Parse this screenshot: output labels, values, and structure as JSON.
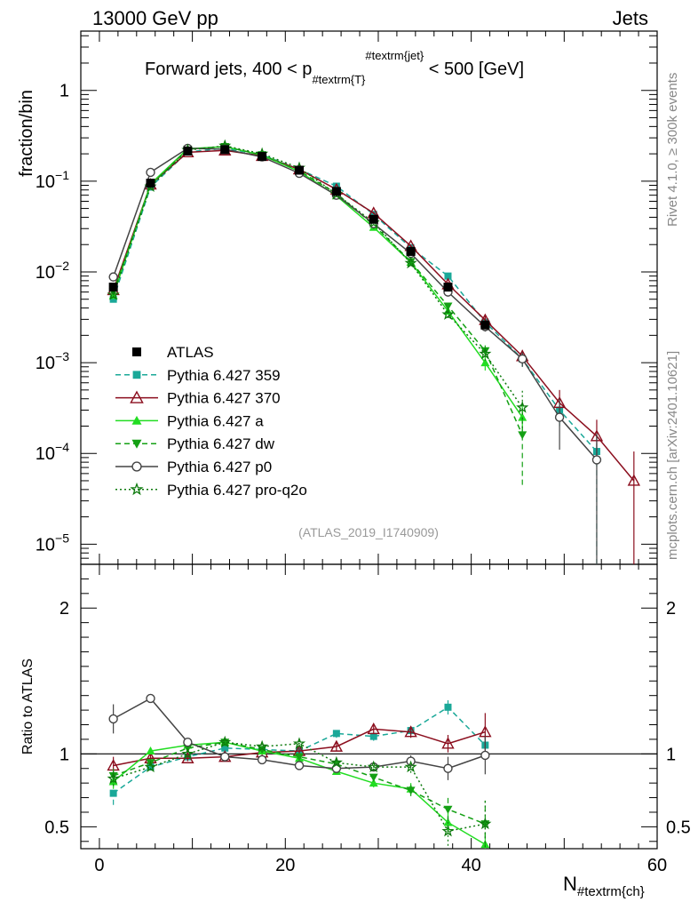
{
  "header": {
    "left": "13000 GeV pp",
    "right": "Jets"
  },
  "side_labels": {
    "rivet": "Rivet 4.1.0, ≥ 300k events",
    "mcplots": "mcplots.cern.ch [arXiv:2401.10621]"
  },
  "chart_data": {
    "type": "line",
    "title": "Forward jets, 400 < p_{#textrm{T}}^{#textrm{jet}} < 500 [GeV]",
    "title_parts": {
      "prefix": "Forward jets, 400 < p",
      "sub": "#textrm{T}",
      "sup": "#textrm{jet}",
      "suffix": " < 500 [GeV]"
    },
    "watermark": "(ATLAS_2019_I1740909)",
    "xlabel": "N",
    "xlabel_sub": "#textrm{ch}",
    "ylabel": "fraction/bin",
    "ratio_ylabel": "Ratio to ATLAS",
    "xlim": [
      -2,
      60
    ],
    "ylim_log": [
      6e-06,
      4.5
    ],
    "ratio_ylim": [
      0.35,
      2.3
    ],
    "x_ticks": [
      0,
      20,
      40,
      60
    ],
    "x_tick_labels": [
      "0",
      "20",
      "40",
      "60"
    ],
    "y_ticks": [
      1e-05,
      0.0001,
      0.001,
      0.01,
      0.1,
      1
    ],
    "y_tick_base": [
      "10",
      "10",
      "10",
      "10",
      "10",
      "1"
    ],
    "y_tick_exp": [
      "−5",
      "−4",
      "−3",
      "−2",
      "−1",
      ""
    ],
    "ratio_ticks": [
      0.5,
      1,
      2
    ],
    "ratio_tick_labels": [
      "0.5",
      "1",
      "2"
    ],
    "legend_position": "middle-left",
    "data": {
      "name": "ATLAS",
      "x": [
        1.5,
        5.5,
        9.5,
        13.5,
        17.5,
        21.5,
        25.5,
        29.5,
        33.5,
        37.5,
        41.5
      ],
      "y": [
        0.0068,
        0.095,
        0.215,
        0.222,
        0.187,
        0.132,
        0.077,
        0.038,
        0.0168,
        0.0068,
        0.0026
      ]
    },
    "series": [
      {
        "name": "Pythia 6.427 359",
        "color": "#1aa898",
        "dash": "6,4",
        "marker": "square",
        "x": [
          1.5,
          5.5,
          9.5,
          13.5,
          17.5,
          21.5,
          25.5,
          29.5,
          33.5,
          37.5,
          41.5,
          45.5,
          49.5,
          53.5
        ],
        "y": [
          0.005,
          0.086,
          0.21,
          0.23,
          0.195,
          0.135,
          0.088,
          0.043,
          0.0185,
          0.009,
          0.0028,
          0.0011,
          0.0003,
          0.000105
        ],
        "yerr_lo": [
          0.0004,
          0.003,
          0.005,
          0.005,
          0.004,
          0.003,
          0.002,
          0.0012,
          0.0007,
          0.0005,
          0.0003,
          0.0002,
          0.0001,
          0.000102
        ],
        "yerr_hi": [
          0.0004,
          0.003,
          0.005,
          0.005,
          0.004,
          0.003,
          0.002,
          0.0012,
          0.0007,
          0.0005,
          0.0003,
          0.0002,
          0.0001,
          6e-05
        ],
        "ratio": [
          0.73,
          0.91,
          0.98,
          1.04,
          1.03,
          1.02,
          1.14,
          1.12,
          1.16,
          1.32,
          1.06
        ],
        "ratio_err": [
          0.08,
          0.02,
          0.02,
          0.02,
          0.02,
          0.02,
          0.03,
          0.03,
          0.03,
          0.05,
          0.08
        ]
      },
      {
        "name": "Pythia 6.427 370",
        "color": "#8b0e1e",
        "dash": "",
        "marker": "triangle-open",
        "x": [
          1.5,
          5.5,
          9.5,
          13.5,
          17.5,
          21.5,
          25.5,
          29.5,
          33.5,
          37.5,
          41.5,
          45.5,
          49.5,
          53.5,
          57.5
        ],
        "y": [
          0.0063,
          0.092,
          0.208,
          0.218,
          0.19,
          0.135,
          0.081,
          0.0445,
          0.0193,
          0.0073,
          0.00295,
          0.00118,
          0.00036,
          0.000155,
          5e-05
        ],
        "yerr_lo": [
          0.0004,
          0.003,
          0.005,
          0.005,
          0.004,
          0.003,
          0.002,
          0.0012,
          0.0007,
          0.0005,
          0.0003,
          0.0002,
          0.00012,
          6e-05,
          4.6e-05
        ],
        "yerr_hi": [
          0.0004,
          0.003,
          0.005,
          0.005,
          0.004,
          0.003,
          0.002,
          0.0012,
          0.0007,
          0.0005,
          0.0003,
          0.0002,
          0.00014,
          8e-05,
          5.5e-05
        ],
        "ratio": [
          0.92,
          0.97,
          0.97,
          0.98,
          1.01,
          1.02,
          1.05,
          1.17,
          1.15,
          1.07,
          1.15
        ],
        "ratio_err": [
          0.06,
          0.03,
          0.02,
          0.02,
          0.02,
          0.02,
          0.03,
          0.03,
          0.04,
          0.06,
          0.13
        ]
      },
      {
        "name": "Pythia 6.427 a",
        "color": "#22dd22",
        "dash": "",
        "marker": "triangle",
        "x": [
          1.5,
          5.5,
          9.5,
          13.5,
          17.5,
          21.5,
          25.5,
          29.5,
          33.5,
          37.5,
          41.5,
          45.5
        ],
        "y": [
          0.0055,
          0.093,
          0.228,
          0.24,
          0.193,
          0.128,
          0.069,
          0.031,
          0.0128,
          0.0037,
          0.001,
          0.00025
        ],
        "yerr_lo": [
          0.0004,
          0.003,
          0.005,
          0.005,
          0.004,
          0.003,
          0.002,
          0.001,
          0.0006,
          0.0003,
          0.00018,
          9e-05
        ],
        "yerr_hi": [
          0.0004,
          0.003,
          0.005,
          0.005,
          0.004,
          0.003,
          0.002,
          0.001,
          0.0006,
          0.0003,
          0.00018,
          0.00012
        ],
        "ratio": [
          0.81,
          1.02,
          1.06,
          1.08,
          1.02,
          0.97,
          0.88,
          0.8,
          0.76,
          0.53,
          0.38
        ],
        "ratio_err": [
          0.05,
          0.02,
          0.02,
          0.02,
          0.02,
          0.02,
          0.02,
          0.03,
          0.04,
          0.08,
          0.08
        ]
      },
      {
        "name": "Pythia 6.427 dw",
        "color": "#14a014",
        "dash": "6,4",
        "marker": "triangle-down",
        "x": [
          1.5,
          5.5,
          9.5,
          13.5,
          17.5,
          21.5,
          25.5,
          29.5,
          33.5,
          37.5,
          41.5,
          45.5
        ],
        "y": [
          0.006,
          0.09,
          0.225,
          0.24,
          0.195,
          0.13,
          0.073,
          0.033,
          0.013,
          0.0042,
          0.00135,
          0.00016
        ],
        "yerr_lo": [
          0.0004,
          0.003,
          0.005,
          0.005,
          0.004,
          0.003,
          0.002,
          0.001,
          0.0006,
          0.0003,
          0.0002,
          0.000115
        ],
        "yerr_hi": [
          0.0004,
          0.003,
          0.005,
          0.005,
          0.004,
          0.003,
          0.002,
          0.001,
          0.0006,
          0.0003,
          0.0002,
          0.00016
        ],
        "ratio": [
          0.85,
          0.94,
          1.04,
          1.08,
          1.03,
          0.98,
          0.93,
          0.84,
          0.75,
          0.62,
          0.52
        ],
        "ratio_err": [
          0.05,
          0.02,
          0.02,
          0.02,
          0.02,
          0.02,
          0.02,
          0.03,
          0.04,
          0.08,
          0.16
        ]
      },
      {
        "name": "Pythia 6.427 p0",
        "color": "#444444",
        "dash": "",
        "marker": "circle-open",
        "x": [
          1.5,
          5.5,
          9.5,
          13.5,
          17.5,
          21.5,
          25.5,
          29.5,
          33.5,
          37.5,
          41.5,
          45.5,
          49.5,
          53.5
        ],
        "y": [
          0.0088,
          0.125,
          0.23,
          0.225,
          0.185,
          0.122,
          0.07,
          0.034,
          0.016,
          0.006,
          0.0025,
          0.0011,
          0.00025,
          8.5e-05
        ],
        "yerr_lo": [
          0.0005,
          0.003,
          0.005,
          0.005,
          0.004,
          0.003,
          0.002,
          0.001,
          0.0006,
          0.0004,
          0.0003,
          0.0002,
          0.00014,
          8.2e-05
        ],
        "yerr_hi": [
          0.0005,
          0.003,
          0.005,
          0.005,
          0.004,
          0.003,
          0.002,
          0.001,
          0.0006,
          0.0004,
          0.0003,
          0.0002,
          0.00015,
          8e-05
        ],
        "ratio": [
          1.24,
          1.38,
          1.08,
          0.98,
          0.96,
          0.92,
          0.9,
          0.91,
          0.95,
          0.9,
          0.99
        ],
        "ratio_err": [
          0.1,
          0.03,
          0.02,
          0.02,
          0.02,
          0.02,
          0.02,
          0.03,
          0.04,
          0.08,
          0.13
        ]
      },
      {
        "name": "Pythia 6.427 pro-q2o",
        "color": "#0d7a0d",
        "dash": "2,3",
        "marker": "star",
        "x": [
          1.5,
          5.5,
          9.5,
          13.5,
          17.5,
          21.5,
          25.5,
          29.5,
          33.5,
          37.5,
          41.5,
          45.5
        ],
        "y": [
          0.0056,
          0.087,
          0.22,
          0.245,
          0.2,
          0.14,
          0.072,
          0.035,
          0.0125,
          0.0034,
          0.00125,
          0.00032
        ],
        "yerr_lo": [
          0.0004,
          0.003,
          0.005,
          0.005,
          0.004,
          0.003,
          0.002,
          0.001,
          0.0006,
          0.0003,
          0.0002,
          0.00013
        ],
        "yerr_hi": [
          0.0004,
          0.003,
          0.005,
          0.005,
          0.004,
          0.003,
          0.002,
          0.001,
          0.0006,
          0.0003,
          0.0002,
          0.0002
        ],
        "ratio": [
          0.83,
          0.91,
          1.0,
          1.08,
          1.05,
          1.07,
          0.94,
          0.91,
          0.91,
          0.47,
          0.52
        ],
        "ratio_err": [
          0.05,
          0.02,
          0.02,
          0.02,
          0.02,
          0.02,
          0.02,
          0.03,
          0.04,
          0.1,
          0.16
        ]
      }
    ]
  }
}
